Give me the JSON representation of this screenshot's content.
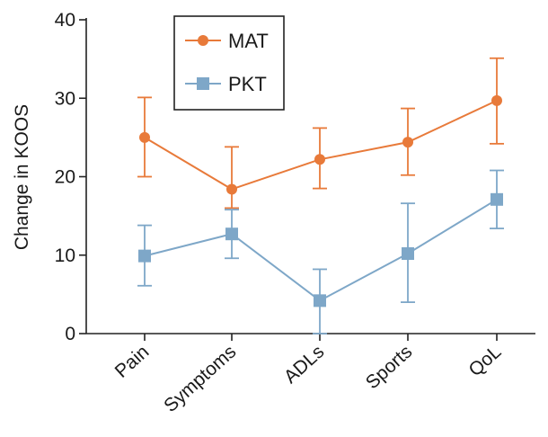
{
  "chart_data": {
    "type": "line",
    "title": "",
    "xlabel": "",
    "ylabel": "Change in KOOS",
    "categories": [
      "Pain",
      "Symptoms",
      "ADLs",
      "Sports",
      "QoL"
    ],
    "ylim": [
      0,
      40
    ],
    "yticks": [
      "0",
      "10",
      "20",
      "30",
      "40"
    ],
    "grid": false,
    "legend_position": "top-left",
    "series": [
      {
        "name": "MAT",
        "color": "#e87a3a",
        "marker": "circle",
        "values": [
          25.0,
          18.4,
          22.2,
          24.4,
          29.7
        ],
        "error_low": [
          20.0,
          16.0,
          18.5,
          20.2,
          24.2
        ],
        "error_high": [
          30.1,
          23.8,
          26.2,
          28.7,
          35.1
        ]
      },
      {
        "name": "PKT",
        "color": "#7ea7c8",
        "marker": "square",
        "values": [
          9.9,
          12.7,
          4.2,
          10.2,
          17.1
        ],
        "error_low": [
          6.1,
          9.6,
          0.0,
          4.0,
          13.4
        ],
        "error_high": [
          13.8,
          15.8,
          8.2,
          16.6,
          20.8
        ]
      }
    ]
  }
}
